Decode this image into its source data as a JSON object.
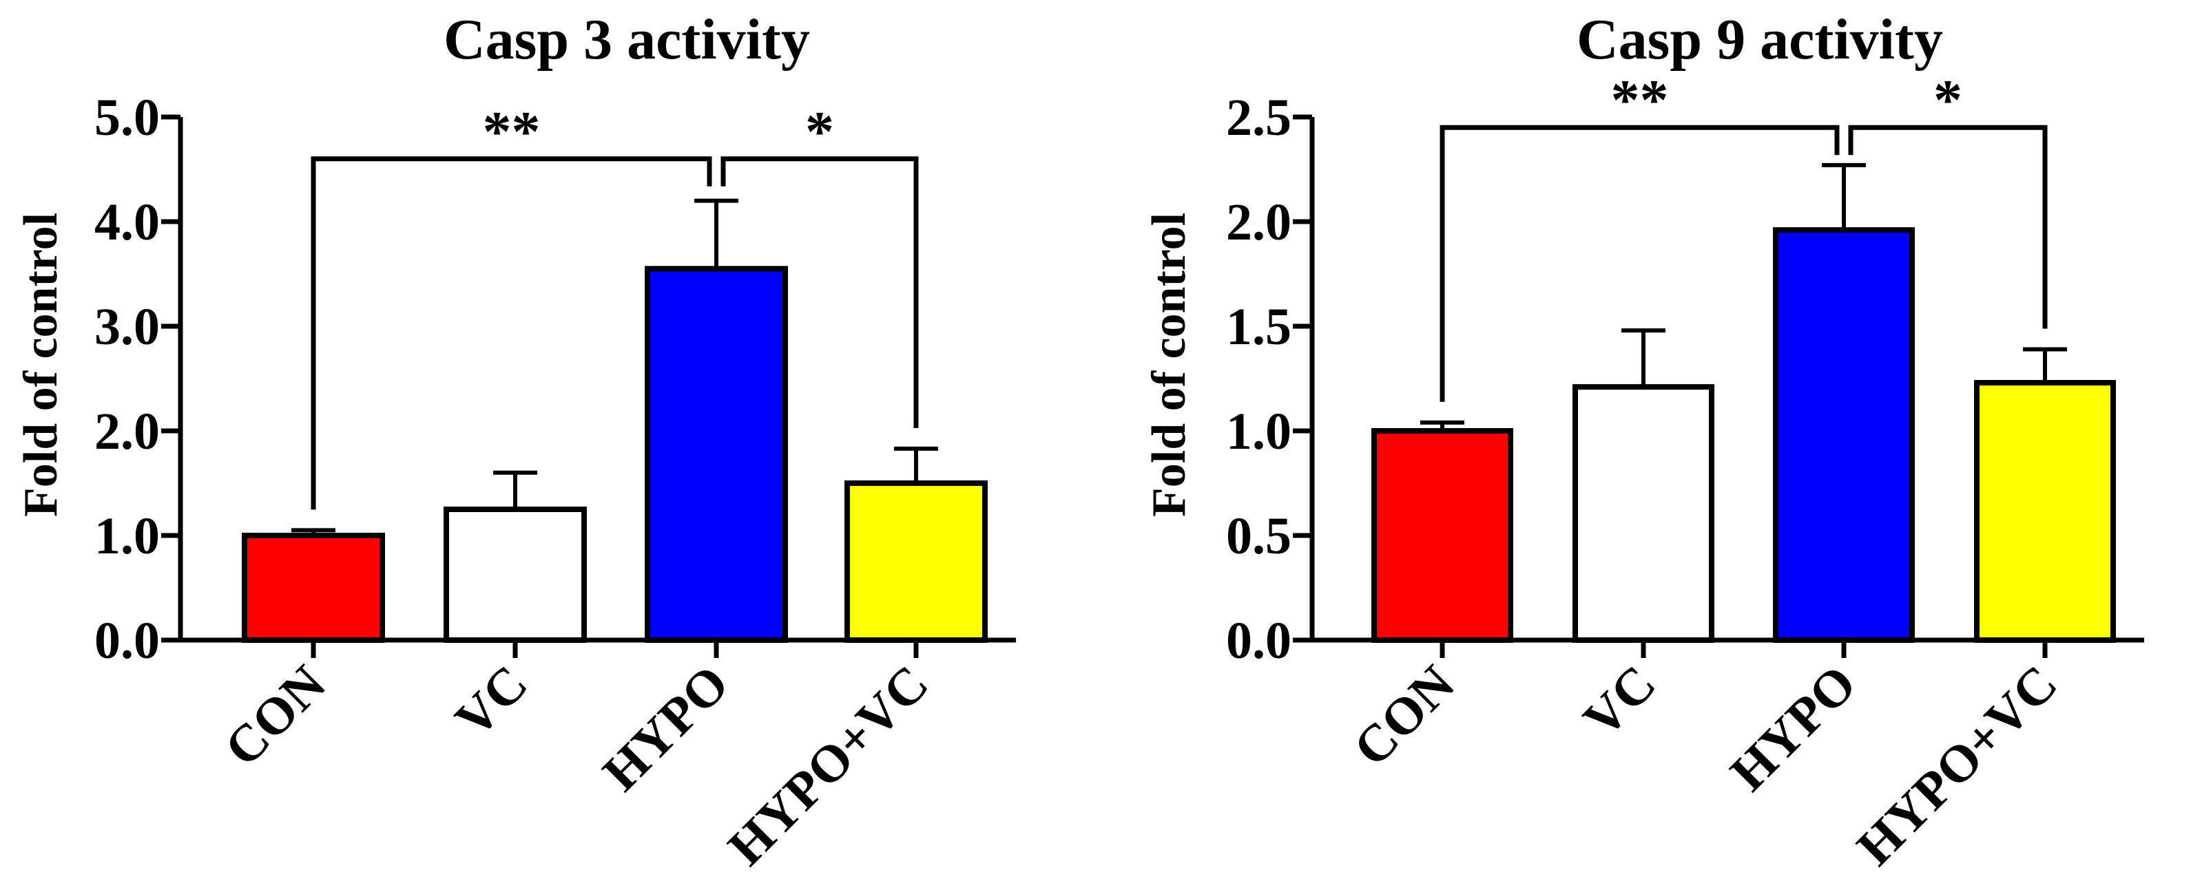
{
  "chart_data": [
    {
      "type": "bar",
      "title": "Casp 3 activity",
      "ylabel": "Fold of control",
      "xlabel": "",
      "categories": [
        "CON",
        "VC",
        "HYPO",
        "HYPO+VC"
      ],
      "values": [
        1.0,
        1.25,
        3.55,
        1.5
      ],
      "errors": [
        0.05,
        0.35,
        0.65,
        0.33
      ],
      "colors": [
        "#ff0000",
        "#ffffff",
        "#0000ff",
        "#ffff00"
      ],
      "ylim": [
        0,
        5.0
      ],
      "yticks": [
        "0.0",
        "1.0",
        "2.0",
        "3.0",
        "4.0",
        "5.0"
      ],
      "significance": [
        {
          "from": "CON",
          "to": "HYPO",
          "label": "**",
          "y": 4.6
        },
        {
          "from": "HYPO",
          "to": "HYPO+VC",
          "label": "*",
          "y": 4.6
        }
      ]
    },
    {
      "type": "bar",
      "title": "Casp 9 activity",
      "ylabel": "Fold of control",
      "xlabel": "",
      "categories": [
        "CON",
        "VC",
        "HYPO",
        "HYPO+VC"
      ],
      "values": [
        1.0,
        1.21,
        1.96,
        1.23
      ],
      "errors": [
        0.04,
        0.27,
        0.31,
        0.16
      ],
      "colors": [
        "#ff0000",
        "#ffffff",
        "#0000ff",
        "#ffff00"
      ],
      "ylim": [
        0,
        2.5
      ],
      "yticks": [
        "0.0",
        "0.5",
        "1.0",
        "1.5",
        "2.0",
        "2.5"
      ],
      "significance": [
        {
          "from": "CON",
          "to": "HYPO",
          "label": "**",
          "y": 2.45
        },
        {
          "from": "HYPO",
          "to": "HYPO+VC",
          "label": "*",
          "y": 2.45
        }
      ]
    }
  ]
}
